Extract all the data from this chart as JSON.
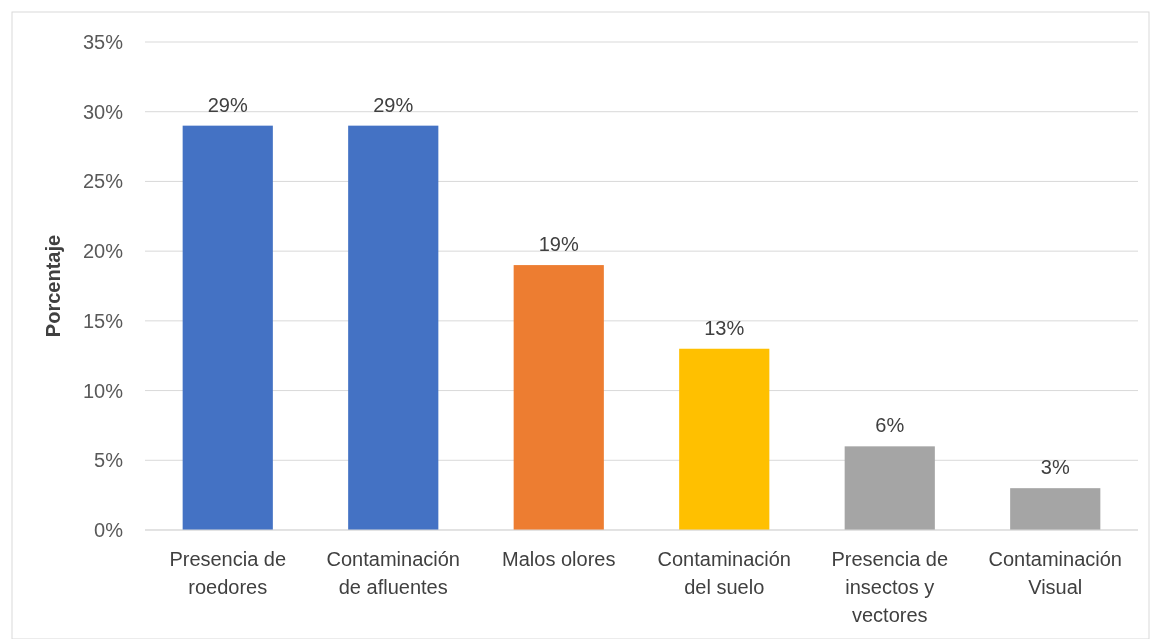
{
  "chart_data": {
    "type": "bar",
    "ylabel": "Porcentaje",
    "categories": [
      "Presencia de roedores",
      "Contaminación de afluentes",
      "Malos olores",
      "Contaminación del suelo",
      "Presencia de insectos y vectores",
      "Contaminación Visual"
    ],
    "values": [
      29,
      29,
      19,
      13,
      6,
      3
    ],
    "colors": [
      "#4472c4",
      "#4472c4",
      "#ed7d31",
      "#ffc000",
      "#a5a5a5",
      "#a5a5a5"
    ],
    "value_labels": [
      "29%",
      "29%",
      "19%",
      "13%",
      "6%",
      "3%"
    ],
    "ylim": [
      0,
      35
    ],
    "yticks": [
      {
        "value": 0,
        "label": "0%"
      },
      {
        "value": 5,
        "label": "5%"
      },
      {
        "value": 10,
        "label": "10%"
      },
      {
        "value": 15,
        "label": "15%"
      },
      {
        "value": 20,
        "label": "20%"
      },
      {
        "value": 25,
        "label": "25%"
      },
      {
        "value": 30,
        "label": "30%"
      },
      {
        "value": 35,
        "label": "35%"
      }
    ],
    "grid": "y"
  }
}
